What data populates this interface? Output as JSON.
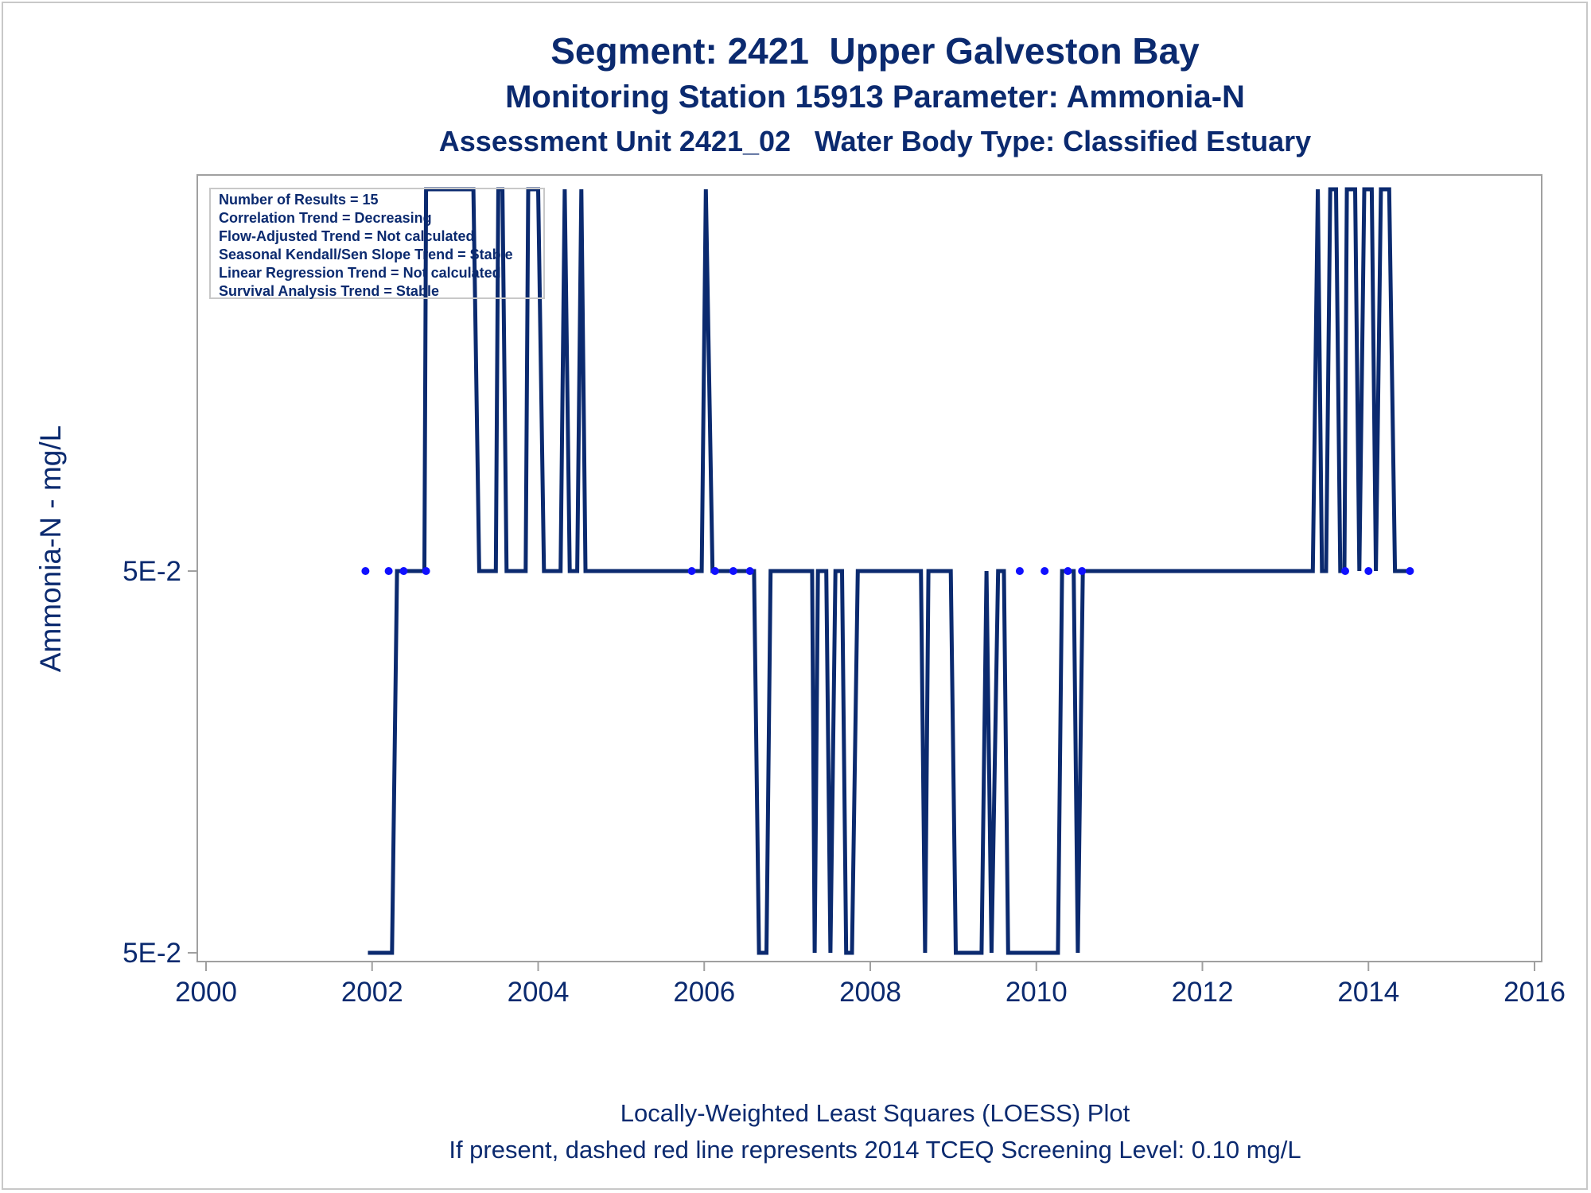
{
  "titles": {
    "line1": "Segment: 2421  Upper Galveston Bay",
    "line2": "Monitoring Station 15913 Parameter: Ammonia-N",
    "line3": "Assessment Unit 2421_02   Water Body Type: Classified Estuary"
  },
  "footnotes": {
    "line1": "Locally-Weighted Least Squares (LOESS) Plot",
    "line2": "If present, dashed red line represents 2014 TCEQ Screening Level: 0.10 mg/L"
  },
  "stats": [
    "Number of Results = 15",
    "Correlation Trend = Decreasing",
    "Flow-Adjusted Trend = Not calculated",
    "Seasonal Kendall/Sen Slope Trend = Stable",
    "Linear Regression Trend = Not calculated",
    "Survival Analysis Trend = Stable"
  ],
  "colors": {
    "line": "#0b2a6f",
    "points": "#1010ff",
    "text": "#0b2a6f",
    "axis": "#a0a0a0"
  },
  "chart_data": {
    "type": "line",
    "title": "Segment: 2421  Upper Galveston Bay",
    "subtitle": "Monitoring Station 15913 Parameter: Ammonia-N",
    "xlabel": "",
    "ylabel": "Ammonia-N - mg/L",
    "xlim": [
      2000,
      2016
    ],
    "x_ticks": [
      2000,
      2002,
      2004,
      2006,
      2008,
      2010,
      2012,
      2014,
      2016
    ],
    "y_ticks": [
      {
        "label": "5E-2",
        "level": "upper"
      },
      {
        "label": "5E-2",
        "level": "lower"
      }
    ],
    "y_levels": [
      "low",
      "mid",
      "high"
    ],
    "grid": false,
    "series": [
      {
        "name": "",
        "style": "loess",
        "points": [
          {
            "x": 2001.95,
            "level": "low"
          },
          {
            "x": 2002.24,
            "level": "low"
          },
          {
            "x": 2002.3,
            "level": "mid"
          },
          {
            "x": 2002.63,
            "level": "mid"
          },
          {
            "x": 2002.65,
            "level": "high"
          },
          {
            "x": 2003.22,
            "level": "high"
          },
          {
            "x": 2003.29,
            "level": "mid"
          },
          {
            "x": 2003.49,
            "level": "mid"
          },
          {
            "x": 2003.52,
            "level": "high"
          },
          {
            "x": 2003.57,
            "level": "high"
          },
          {
            "x": 2003.62,
            "level": "mid"
          },
          {
            "x": 2003.85,
            "level": "mid"
          },
          {
            "x": 2003.88,
            "level": "high"
          },
          {
            "x": 2004.0,
            "level": "high"
          },
          {
            "x": 2004.07,
            "level": "mid"
          },
          {
            "x": 2004.27,
            "level": "mid"
          },
          {
            "x": 2004.32,
            "level": "high"
          },
          {
            "x": 2004.38,
            "level": "mid"
          },
          {
            "x": 2004.47,
            "level": "mid"
          },
          {
            "x": 2004.52,
            "level": "high"
          },
          {
            "x": 2004.57,
            "level": "mid"
          },
          {
            "x": 2005.97,
            "level": "mid"
          },
          {
            "x": 2006.02,
            "level": "high"
          },
          {
            "x": 2006.1,
            "level": "mid"
          },
          {
            "x": 2006.6,
            "level": "mid"
          },
          {
            "x": 2006.66,
            "level": "low"
          },
          {
            "x": 2006.75,
            "level": "low"
          },
          {
            "x": 2006.8,
            "level": "mid"
          },
          {
            "x": 2007.3,
            "level": "mid"
          },
          {
            "x": 2007.33,
            "level": "low"
          },
          {
            "x": 2007.37,
            "level": "mid"
          },
          {
            "x": 2007.47,
            "level": "mid"
          },
          {
            "x": 2007.52,
            "level": "low"
          },
          {
            "x": 2007.58,
            "level": "mid"
          },
          {
            "x": 2007.66,
            "level": "mid"
          },
          {
            "x": 2007.71,
            "level": "low"
          },
          {
            "x": 2007.78,
            "level": "low"
          },
          {
            "x": 2007.85,
            "level": "mid"
          },
          {
            "x": 2008.61,
            "level": "mid"
          },
          {
            "x": 2008.66,
            "level": "low"
          },
          {
            "x": 2008.7,
            "level": "mid"
          },
          {
            "x": 2008.97,
            "level": "mid"
          },
          {
            "x": 2009.03,
            "level": "low"
          },
          {
            "x": 2009.34,
            "level": "low"
          },
          {
            "x": 2009.4,
            "level": "mid"
          },
          {
            "x": 2009.46,
            "level": "low"
          },
          {
            "x": 2009.54,
            "level": "mid"
          },
          {
            "x": 2009.61,
            "level": "mid"
          },
          {
            "x": 2009.66,
            "level": "low"
          },
          {
            "x": 2010.26,
            "level": "low"
          },
          {
            "x": 2010.31,
            "level": "mid"
          },
          {
            "x": 2010.45,
            "level": "mid"
          },
          {
            "x": 2010.5,
            "level": "low"
          },
          {
            "x": 2010.56,
            "level": "mid"
          },
          {
            "x": 2013.33,
            "level": "mid"
          },
          {
            "x": 2013.39,
            "level": "high"
          },
          {
            "x": 2013.44,
            "level": "mid"
          },
          {
            "x": 2013.49,
            "level": "mid"
          },
          {
            "x": 2013.54,
            "level": "high"
          },
          {
            "x": 2013.61,
            "level": "high"
          },
          {
            "x": 2013.66,
            "level": "mid"
          },
          {
            "x": 2013.71,
            "level": "mid"
          },
          {
            "x": 2013.74,
            "level": "high"
          },
          {
            "x": 2013.84,
            "level": "high"
          },
          {
            "x": 2013.89,
            "level": "mid"
          },
          {
            "x": 2013.95,
            "level": "high"
          },
          {
            "x": 2014.04,
            "level": "high"
          },
          {
            "x": 2014.09,
            "level": "mid"
          },
          {
            "x": 2014.15,
            "level": "high"
          },
          {
            "x": 2014.25,
            "level": "high"
          },
          {
            "x": 2014.32,
            "level": "mid"
          },
          {
            "x": 2014.52,
            "level": "mid"
          }
        ]
      },
      {
        "name": "",
        "style": "points",
        "points": [
          {
            "x": 2001.92,
            "level": "mid"
          },
          {
            "x": 2002.2,
            "level": "mid"
          },
          {
            "x": 2002.38,
            "level": "mid"
          },
          {
            "x": 2002.65,
            "level": "mid"
          },
          {
            "x": 2005.85,
            "level": "mid"
          },
          {
            "x": 2006.13,
            "level": "mid"
          },
          {
            "x": 2006.35,
            "level": "mid"
          },
          {
            "x": 2006.55,
            "level": "mid"
          },
          {
            "x": 2009.8,
            "level": "mid"
          },
          {
            "x": 2010.1,
            "level": "mid"
          },
          {
            "x": 2010.38,
            "level": "mid"
          },
          {
            "x": 2010.55,
            "level": "mid"
          },
          {
            "x": 2013.72,
            "level": "mid"
          },
          {
            "x": 2014.0,
            "level": "mid"
          },
          {
            "x": 2014.5,
            "level": "mid"
          }
        ]
      }
    ]
  }
}
